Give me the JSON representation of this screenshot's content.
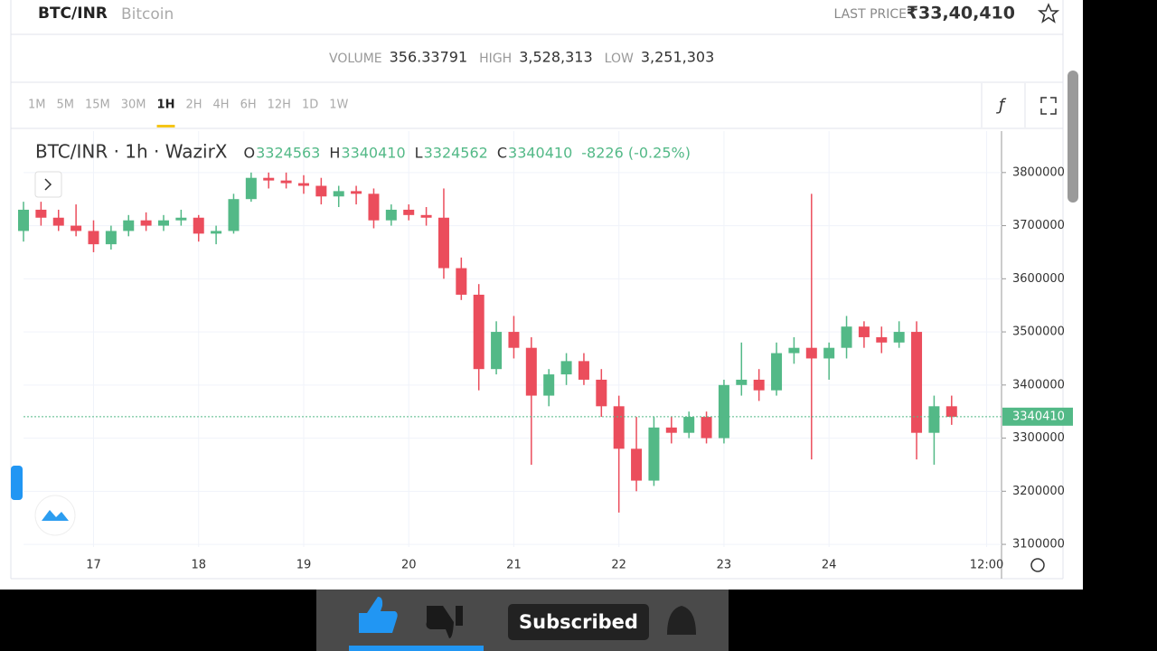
{
  "header": {
    "symbol": "BTC/INR",
    "name": "Bitcoin",
    "last_price_label": "LAST PRICE",
    "last_price": "₹33,40,410"
  },
  "stats": [
    {
      "label": "VOLUME",
      "value": "356.33791"
    },
    {
      "label": "HIGH",
      "value": "3,528,313"
    },
    {
      "label": "LOW",
      "value": "3,251,303"
    }
  ],
  "timeframes": [
    "1M",
    "5M",
    "15M",
    "30M",
    "1H",
    "2H",
    "4H",
    "6H",
    "12H",
    "1D",
    "1W"
  ],
  "active_timeframe": 4,
  "chart_data": {
    "type": "candlestick",
    "legend": {
      "symbol": "BTC/INR · 1h · WazirX",
      "ohlc": [
        {
          "label": "O",
          "value": 3324563
        },
        {
          "label": "H",
          "value": 3340410
        },
        {
          "label": "L",
          "value": 3324562
        },
        {
          "label": "C",
          "value": 3340410
        }
      ],
      "change": "-8226 (-0.25%)"
    },
    "x": [
      -16,
      -12,
      -8,
      -4,
      0,
      4,
      8,
      12,
      16,
      20,
      24,
      28,
      32,
      36,
      40,
      44,
      48,
      52,
      56,
      60,
      64,
      68,
      72,
      76,
      80,
      84,
      88,
      92,
      96,
      100,
      104,
      108,
      112,
      116,
      120,
      124,
      128,
      132,
      136,
      140,
      144,
      148,
      152,
      156,
      160,
      164,
      168,
      172,
      176,
      180,
      184,
      188,
      192,
      196
    ],
    "open": [
      3690000,
      3730000,
      3715000,
      3700000,
      3690000,
      3665000,
      3690000,
      3710000,
      3700000,
      3710000,
      3715000,
      3685000,
      3690000,
      3750000,
      3790000,
      3785000,
      3780000,
      3775000,
      3755000,
      3765000,
      3760000,
      3710000,
      3730000,
      3720000,
      3715000,
      3620000,
      3570000,
      3430000,
      3500000,
      3470000,
      3380000,
      3420000,
      3445000,
      3410000,
      3360000,
      3280000,
      3220000,
      3320000,
      3310000,
      3340000,
      3300000,
      3400000,
      3410000,
      3390000,
      3460000,
      3470000,
      3450000,
      3470000,
      3510000,
      3490000,
      3480000,
      3500000,
      3310000,
      3360000
    ],
    "high": [
      3745000,
      3745000,
      3730000,
      3740000,
      3710000,
      3700000,
      3720000,
      3725000,
      3720000,
      3730000,
      3720000,
      3700000,
      3760000,
      3800000,
      3800000,
      3800000,
      3795000,
      3790000,
      3775000,
      3775000,
      3770000,
      3740000,
      3740000,
      3735000,
      3770000,
      3640000,
      3590000,
      3520000,
      3530000,
      3490000,
      3430000,
      3460000,
      3460000,
      3430000,
      3380000,
      3340000,
      3340000,
      3340000,
      3350000,
      3350000,
      3410000,
      3480000,
      3430000,
      3480000,
      3490000,
      3760000,
      3480000,
      3530000,
      3520000,
      3510000,
      3520000,
      3520000,
      3380000,
      3380000
    ],
    "low": [
      3670000,
      3700000,
      3690000,
      3680000,
      3650000,
      3655000,
      3680000,
      3690000,
      3690000,
      3700000,
      3670000,
      3665000,
      3685000,
      3745000,
      3770000,
      3770000,
      3760000,
      3740000,
      3735000,
      3740000,
      3695000,
      3700000,
      3710000,
      3700000,
      3600000,
      3560000,
      3390000,
      3420000,
      3450000,
      3250000,
      3360000,
      3400000,
      3400000,
      3340000,
      3160000,
      3200000,
      3210000,
      3290000,
      3300000,
      3290000,
      3290000,
      3380000,
      3370000,
      3380000,
      3440000,
      3260000,
      3410000,
      3450000,
      3470000,
      3460000,
      3470000,
      3260000,
      3250000,
      3325000
    ],
    "close": [
      3730000,
      3715000,
      3700000,
      3690000,
      3665000,
      3690000,
      3710000,
      3700000,
      3710000,
      3715000,
      3685000,
      3690000,
      3750000,
      3790000,
      3785000,
      3780000,
      3775000,
      3755000,
      3765000,
      3760000,
      3710000,
      3730000,
      3720000,
      3715000,
      3620000,
      3570000,
      3430000,
      3500000,
      3470000,
      3380000,
      3420000,
      3445000,
      3410000,
      3360000,
      3280000,
      3220000,
      3320000,
      3310000,
      3340000,
      3300000,
      3400000,
      3410000,
      3390000,
      3460000,
      3470000,
      3450000,
      3470000,
      3510000,
      3490000,
      3480000,
      3500000,
      3310000,
      3360000,
      3340000
    ],
    "up_color": "#53b987",
    "down_color": "#eb4d5c",
    "xlim": [
      -16,
      207.4
    ],
    "xticks": [
      {
        "value": 0,
        "label": "17"
      },
      {
        "value": 24,
        "label": "18"
      },
      {
        "value": 48,
        "label": "19"
      },
      {
        "value": 72,
        "label": "20"
      },
      {
        "value": 96,
        "label": "21"
      },
      {
        "value": 120,
        "label": "22"
      },
      {
        "value": 144,
        "label": "23"
      },
      {
        "value": 168,
        "label": "24"
      },
      {
        "value": 204,
        "label": "12:00"
      }
    ],
    "ylim": [
      3095000,
      3878000
    ],
    "yticks": [
      3100000,
      3200000,
      3300000,
      3400000,
      3500000,
      3600000,
      3700000,
      3800000
    ],
    "last_price": 3340410,
    "grid": true
  },
  "overlay": {
    "button": "Subscribed"
  }
}
